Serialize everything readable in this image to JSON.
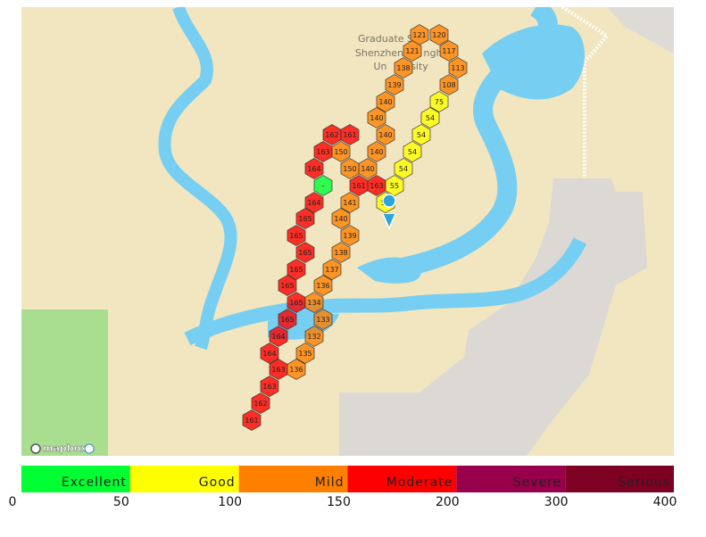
{
  "map": {
    "labels": [
      "Graduate S",
      "Shenzhen",
      "ngh",
      "Un",
      "sity"
    ],
    "attribution": "mapbox",
    "hexes": [
      {
        "value": 121
      },
      {
        "value": 120
      },
      {
        "value": 117
      },
      {
        "value": 113
      },
      {
        "value": 108
      },
      {
        "value": 75
      },
      {
        "value": 54
      },
      {
        "value": 54
      },
      {
        "value": 54
      },
      {
        "value": 54
      },
      {
        "value": 55
      },
      {
        "value": 56
      },
      {
        "value": 121
      },
      {
        "value": 138
      },
      {
        "value": 139
      },
      {
        "value": 140
      },
      {
        "value": 140
      },
      {
        "value": 140
      },
      {
        "value": 140
      },
      {
        "value": 140
      },
      {
        "value": 161
      },
      {
        "value": 163
      },
      {
        "value": 162
      },
      {
        "value": 161
      },
      {
        "value": 163
      },
      {
        "value": 150
      },
      {
        "value": 164
      },
      {
        "value": 150
      },
      {
        "value": null,
        "label": "-"
      },
      {
        "value": 164
      },
      {
        "value": 165
      },
      {
        "value": 165
      },
      {
        "value": 165
      },
      {
        "value": 165
      },
      {
        "value": 165
      },
      {
        "value": 165
      },
      {
        "value": 165
      },
      {
        "value": 164
      },
      {
        "value": 164
      },
      {
        "value": 163
      },
      {
        "value": 163
      },
      {
        "value": 162
      },
      {
        "value": 161
      },
      {
        "value": 141
      },
      {
        "value": 140
      },
      {
        "value": 139
      },
      {
        "value": 138
      },
      {
        "value": 137
      },
      {
        "value": 136
      },
      {
        "value": 134
      },
      {
        "value": 133
      },
      {
        "value": 132
      },
      {
        "value": 135
      },
      {
        "value": 136
      }
    ]
  },
  "legend": {
    "levels": [
      {
        "name": "Excellent",
        "color": "#00ff33"
      },
      {
        "name": "Good",
        "color": "#ffff00"
      },
      {
        "name": "Mild",
        "color": "#ff7f00"
      },
      {
        "name": "Moderate",
        "color": "#ff0000"
      },
      {
        "name": "Severe",
        "color": "#99004c"
      },
      {
        "name": "Serious",
        "color": "#7e0023"
      }
    ],
    "ticks": [
      0,
      50,
      100,
      150,
      200,
      300,
      400
    ]
  }
}
